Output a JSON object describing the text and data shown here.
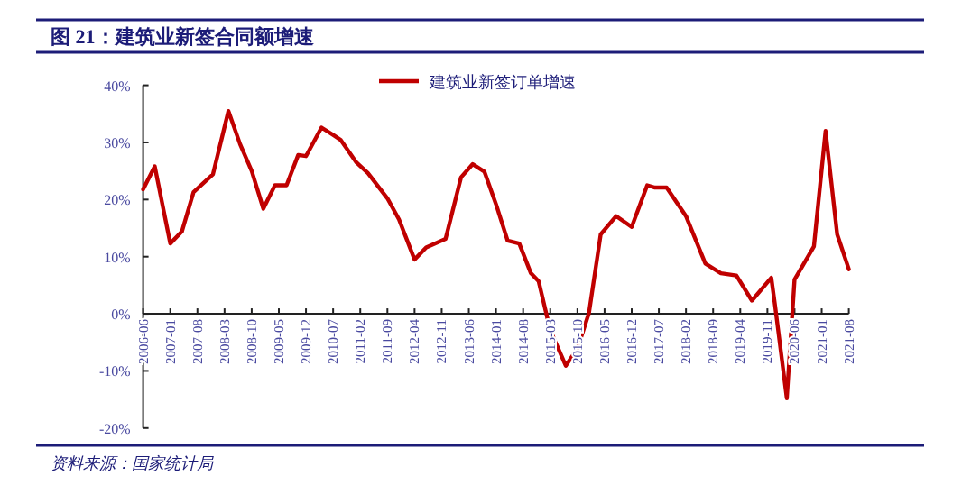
{
  "chart_data": {
    "type": "line",
    "title": "图 21：建筑业新签合同额增速",
    "annotations": [
      "资料来源：国家统计局"
    ],
    "x": [
      "2006-06",
      "2006-09",
      "2007-01",
      "2007-04",
      "2007-07",
      "2007-12",
      "2008-04",
      "2008-07",
      "2008-10",
      "2009-01",
      "2009-04",
      "2009-07",
      "2009-10",
      "2009-12",
      "2010-04",
      "2010-07",
      "2010-09",
      "2011-01",
      "2011-04",
      "2011-09",
      "2011-12",
      "2012-04",
      "2012-07",
      "2012-12",
      "2013-04",
      "2013-07",
      "2013-10",
      "2014-01",
      "2014-04",
      "2014-07",
      "2014-10",
      "2014-12",
      "2015-03",
      "2015-07",
      "2015-10",
      "2016-01",
      "2016-04",
      "2016-08",
      "2016-12",
      "2017-04",
      "2017-06",
      "2017-09",
      "2018-02",
      "2018-07",
      "2018-11",
      "2019-03",
      "2019-07",
      "2019-12",
      "2020-01",
      "2020-04",
      "2020-06",
      "2020-11",
      "2021-02",
      "2021-05",
      "2021-08"
    ],
    "series": [
      {
        "name": "建筑业新签订单增速",
        "color": "#c00000",
        "values": [
          21.8,
          25.8,
          12.3,
          14.4,
          21.3,
          24.4,
          35.5,
          29.7,
          25,
          18.4,
          22.5,
          22.5,
          27.8,
          27.6,
          32.6,
          31.3,
          30.4,
          26.5,
          24.6,
          20.2,
          16.5,
          9.5,
          11.6,
          13.1,
          23.9,
          26.2,
          24.9,
          19.2,
          12.8,
          12.3,
          7.1,
          5.7,
          -2.9,
          -9.1,
          -6.1,
          0.2,
          13.9,
          17.1,
          15.2,
          22.5,
          22.1,
          22.1,
          17.1,
          8.8,
          7.1,
          6.7,
          2.3,
          6.3,
          1.3,
          -14.8,
          6.0,
          11.8,
          32,
          13.9,
          7.8
        ]
      }
    ],
    "xlim": [
      "2006-06",
      "2021-08"
    ],
    "xticks": [
      "2006-06",
      "2007-01",
      "2007-08",
      "2008-03",
      "2008-10",
      "2009-05",
      "2009-12",
      "2010-07",
      "2011-02",
      "2011-09",
      "2012-04",
      "2012-11",
      "2013-06",
      "2014-01",
      "2014-08",
      "2015-03",
      "2015-10",
      "2016-05",
      "2016-12",
      "2017-07",
      "2018-02",
      "2018-09",
      "2019-04",
      "2019-11",
      "2020-06",
      "2021-01",
      "2021-08"
    ],
    "ylim": [
      -20,
      40
    ],
    "yticks": [
      {
        "value": -20,
        "label": "-20%"
      },
      {
        "value": -10,
        "label": "-10%"
      },
      {
        "value": 0,
        "label": "0%"
      },
      {
        "value": 10,
        "label": "10%"
      },
      {
        "value": 20,
        "label": "20%"
      },
      {
        "value": 30,
        "label": "30%"
      },
      {
        "value": 40,
        "label": "40%"
      }
    ],
    "grid": false,
    "legend": "top right",
    "line_style": "solid",
    "marker": "none"
  }
}
